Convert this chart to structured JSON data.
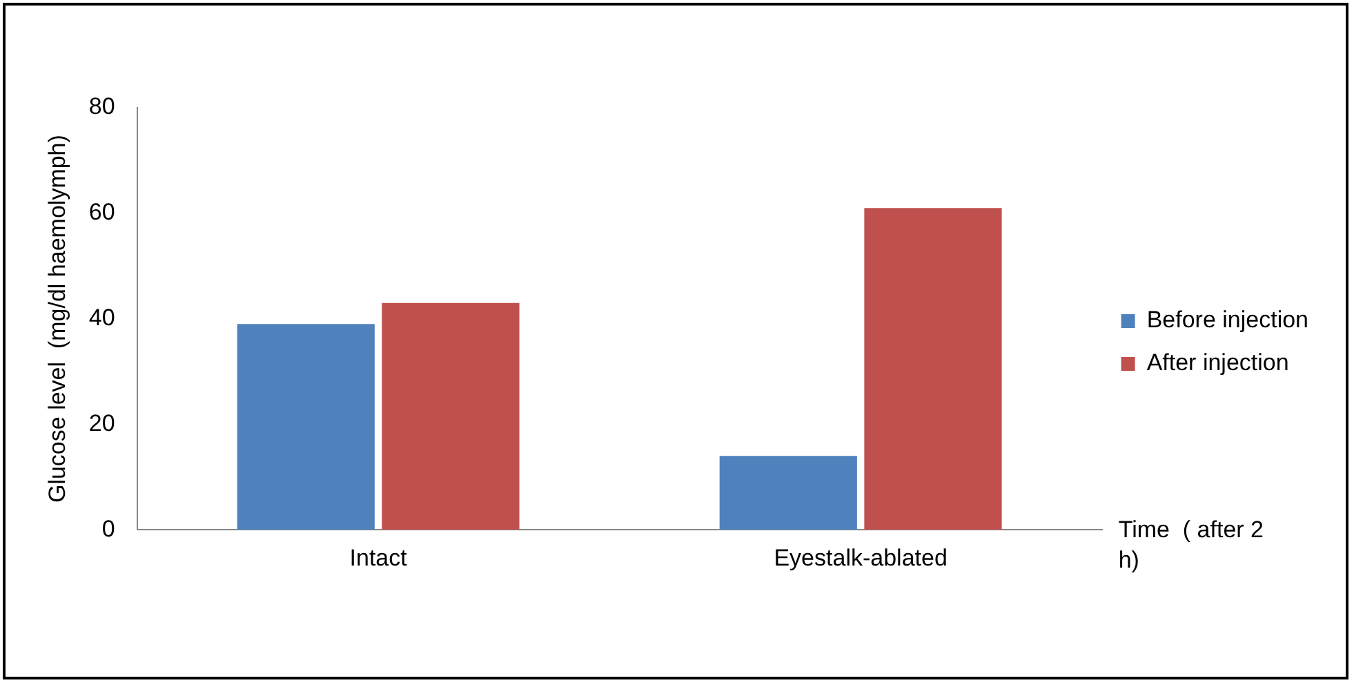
{
  "chart_data": {
    "type": "bar",
    "ylabel": "Glucose level  (mg/dl haemolymph)",
    "xlabel": "Time  ( after 2 h)",
    "categories": [
      "Intact",
      "Eyestalk-ablated"
    ],
    "series": [
      {
        "name": "Before injection",
        "color": "#4f81bd",
        "values": [
          39,
          14
        ]
      },
      {
        "name": "After injection",
        "color": "#c0504d",
        "values": [
          43,
          61
        ]
      }
    ],
    "ylim": [
      0,
      80
    ],
    "yticks": [
      0,
      20,
      40,
      60,
      80
    ],
    "grid": false,
    "legend": "right"
  }
}
